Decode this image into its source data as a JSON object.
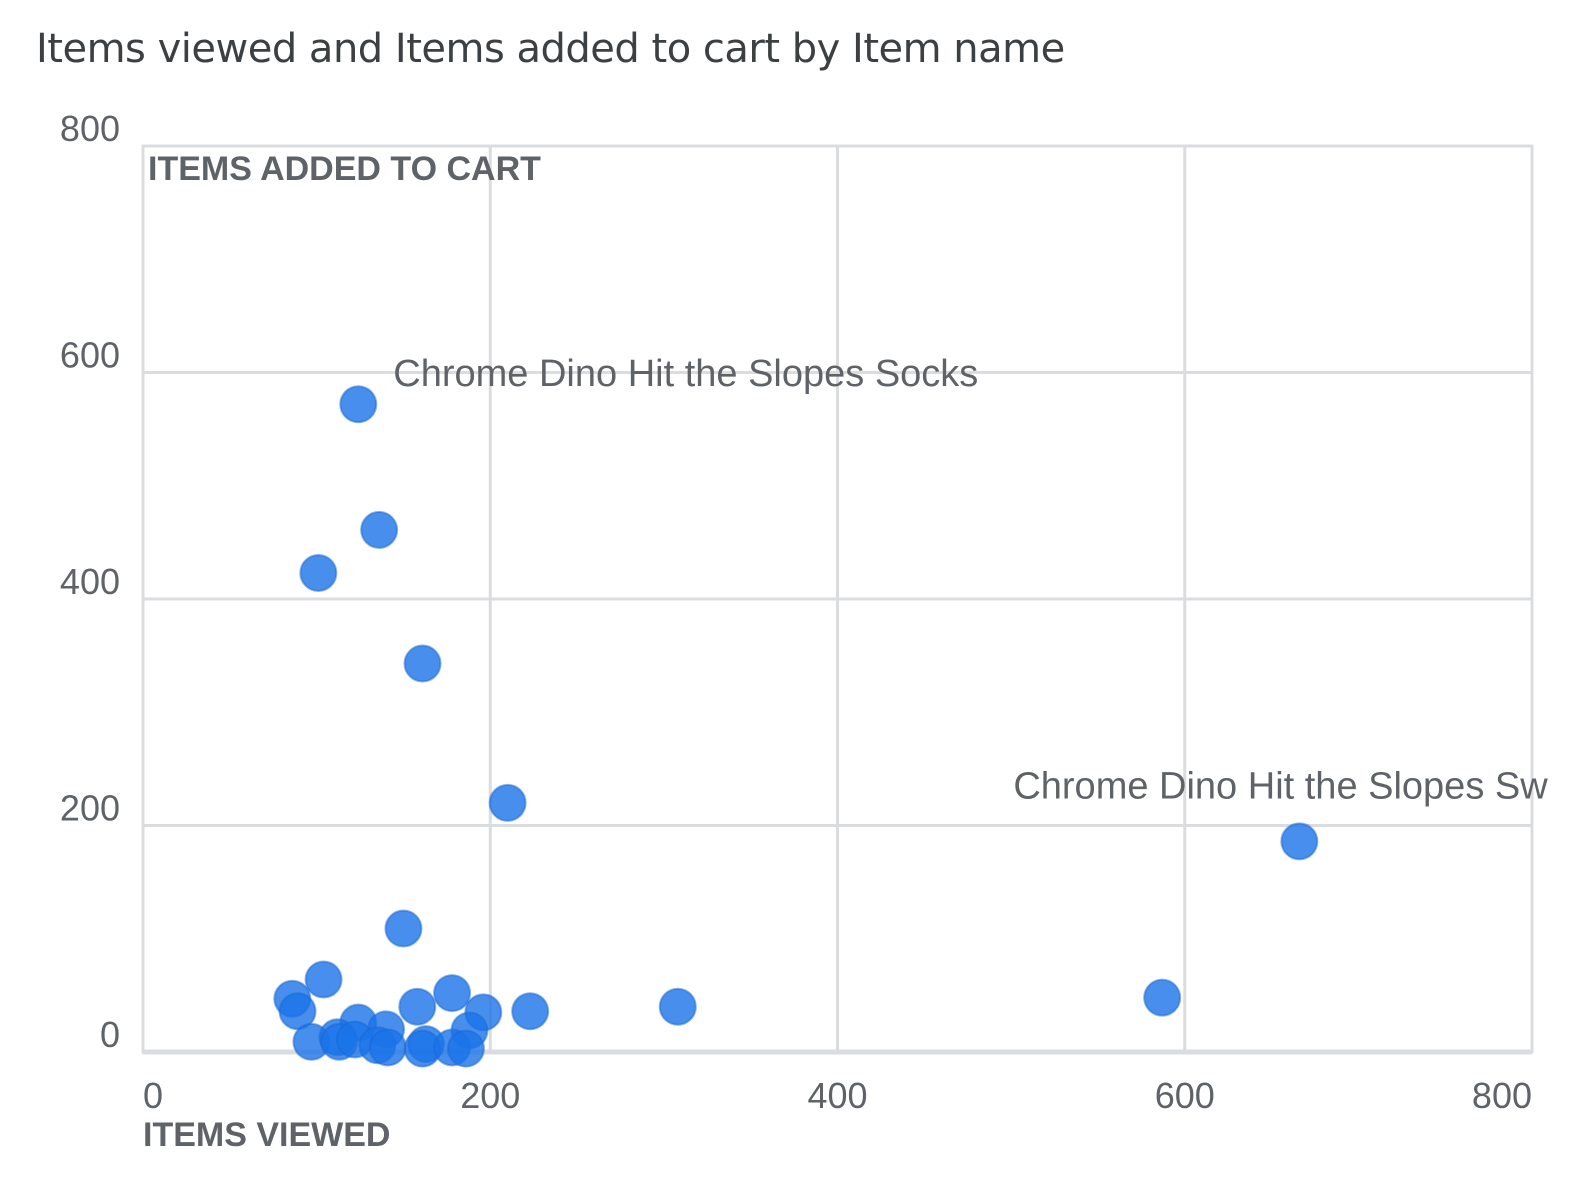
{
  "chart_data": {
    "type": "scatter",
    "title": "Items viewed and Items added to cart by Item name",
    "xlabel": "ITEMS VIEWED",
    "ylabel": "ITEMS ADDED TO CART",
    "xlim": [
      0,
      800
    ],
    "ylim": [
      0,
      800
    ],
    "x_ticks": [
      "0",
      "200",
      "400",
      "600",
      "800"
    ],
    "y_ticks": [
      "0",
      "200",
      "400",
      "600",
      "800"
    ],
    "grid": true,
    "legend": null,
    "point_color": "#1a73e8",
    "annotations": [
      {
        "text": "Chrome Dino Hit the Slopes Socks",
        "x": 124,
        "y": 572
      },
      {
        "text": "Chrome Dino Hit the Slopes Sw",
        "x": 666,
        "y": 186
      }
    ],
    "points": [
      {
        "x": 124,
        "y": 572
      },
      {
        "x": 136,
        "y": 461
      },
      {
        "x": 101,
        "y": 423
      },
      {
        "x": 161,
        "y": 343
      },
      {
        "x": 210,
        "y": 220
      },
      {
        "x": 666,
        "y": 186
      },
      {
        "x": 150,
        "y": 109
      },
      {
        "x": 104,
        "y": 64
      },
      {
        "x": 86,
        "y": 47
      },
      {
        "x": 89,
        "y": 36
      },
      {
        "x": 178,
        "y": 52
      },
      {
        "x": 196,
        "y": 35
      },
      {
        "x": 223,
        "y": 36
      },
      {
        "x": 308,
        "y": 40
      },
      {
        "x": 587,
        "y": 48
      },
      {
        "x": 158,
        "y": 40
      },
      {
        "x": 124,
        "y": 26
      },
      {
        "x": 140,
        "y": 20
      },
      {
        "x": 188,
        "y": 19
      },
      {
        "x": 97,
        "y": 9
      },
      {
        "x": 112,
        "y": 13
      },
      {
        "x": 113,
        "y": 9
      },
      {
        "x": 122,
        "y": 11
      },
      {
        "x": 135,
        "y": 6
      },
      {
        "x": 141,
        "y": 4
      },
      {
        "x": 163,
        "y": 7
      },
      {
        "x": 161,
        "y": 3
      },
      {
        "x": 178,
        "y": 4
      },
      {
        "x": 186,
        "y": 3
      }
    ]
  }
}
